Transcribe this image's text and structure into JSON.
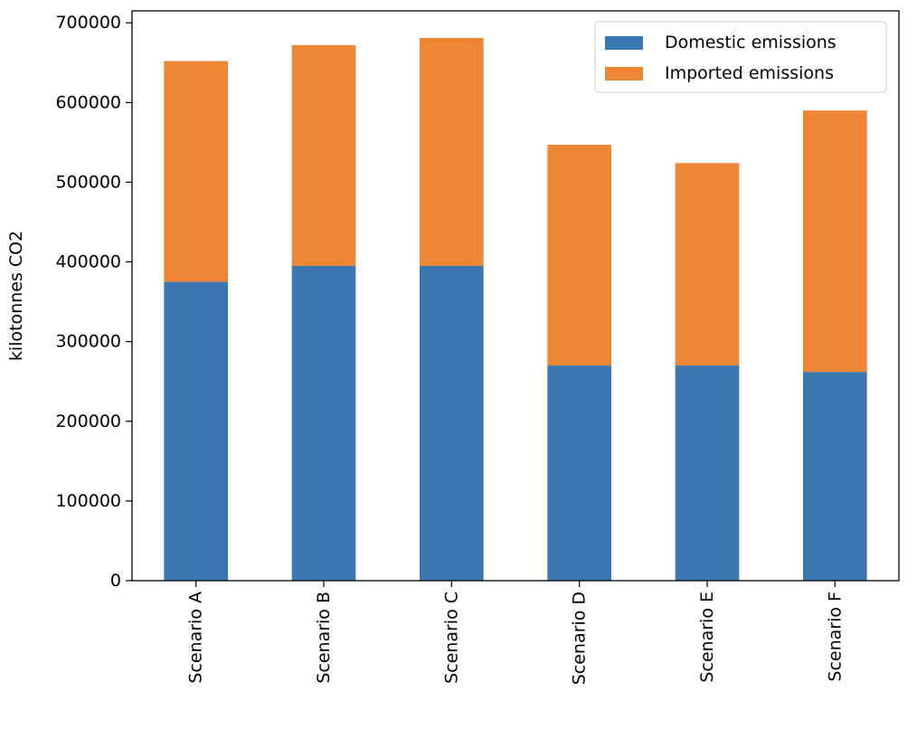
{
  "chart_data": {
    "type": "bar",
    "stacked": true,
    "categories": [
      "Scenario A",
      "Scenario B",
      "Scenario C",
      "Scenario D",
      "Scenario E",
      "Scenario F"
    ],
    "series": [
      {
        "name": "Domestic emissions",
        "color": "#3a76b0",
        "values": [
          375000,
          395000,
          395000,
          270000,
          270000,
          262000
        ]
      },
      {
        "name": "Imported emissions",
        "color": "#ef8636",
        "values": [
          277000,
          277000,
          286000,
          277000,
          254000,
          328000
        ]
      }
    ],
    "ylabel": "kilotonnes CO2",
    "xlabel": "",
    "title": "",
    "ylim": [
      0,
      715000
    ],
    "yticks": [
      0,
      100000,
      200000,
      300000,
      400000,
      500000,
      600000,
      700000
    ],
    "grid": false,
    "legend_position": "top-right"
  }
}
